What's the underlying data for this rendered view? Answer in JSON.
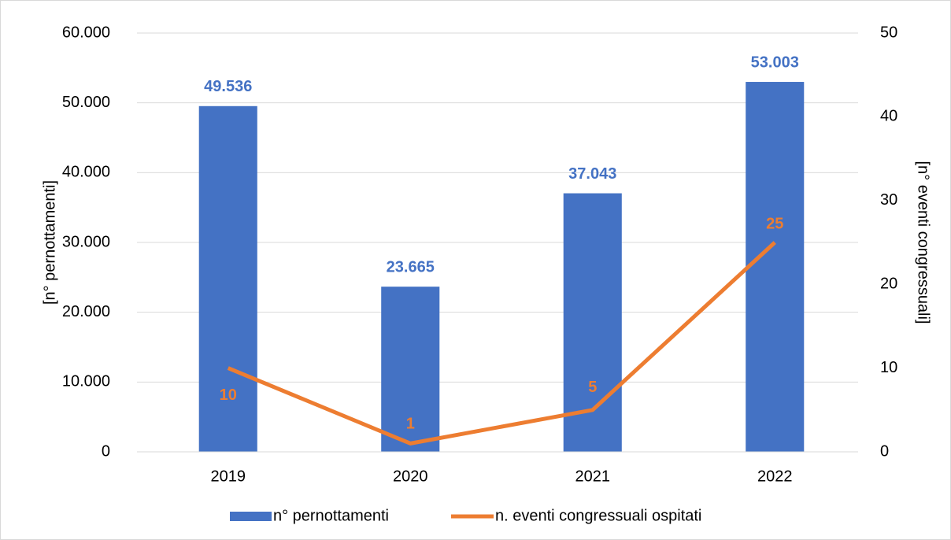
{
  "chart_data": {
    "type": "bar_line",
    "categories": [
      "2019",
      "2020",
      "2021",
      "2022"
    ],
    "series": [
      {
        "name": "n° pernottamenti",
        "type": "bar",
        "color": "#4472c4",
        "values": [
          49536,
          23665,
          37043,
          53003
        ],
        "value_labels": [
          "49.536",
          "23.665",
          "37.043",
          "53.003"
        ]
      },
      {
        "name": "n. eventi congressuali ospitati",
        "type": "line",
        "axis": "y2",
        "color": "#ed7d31",
        "values": [
          10,
          1,
          5,
          25
        ]
      }
    ],
    "ylabel": "[n° pernottamenti]",
    "y2label": "[n° eventi congressuali]",
    "ylim": [
      0,
      60000
    ],
    "yticks": [
      0,
      {
        "value": 10000,
        "label": "10.000"
      },
      {
        "value": 20000,
        "label": "20.000"
      },
      {
        "value": 30000,
        "label": "30.000"
      },
      {
        "value": 40000,
        "label": "40.000"
      },
      {
        "value": 50000,
        "label": "50.000"
      },
      {
        "value": 60000,
        "label": "60.000"
      }
    ],
    "y2lim": [
      0,
      50
    ],
    "y2ticks": [
      0,
      10,
      20,
      30,
      40,
      50
    ],
    "grid": true,
    "legend": "bottom"
  }
}
